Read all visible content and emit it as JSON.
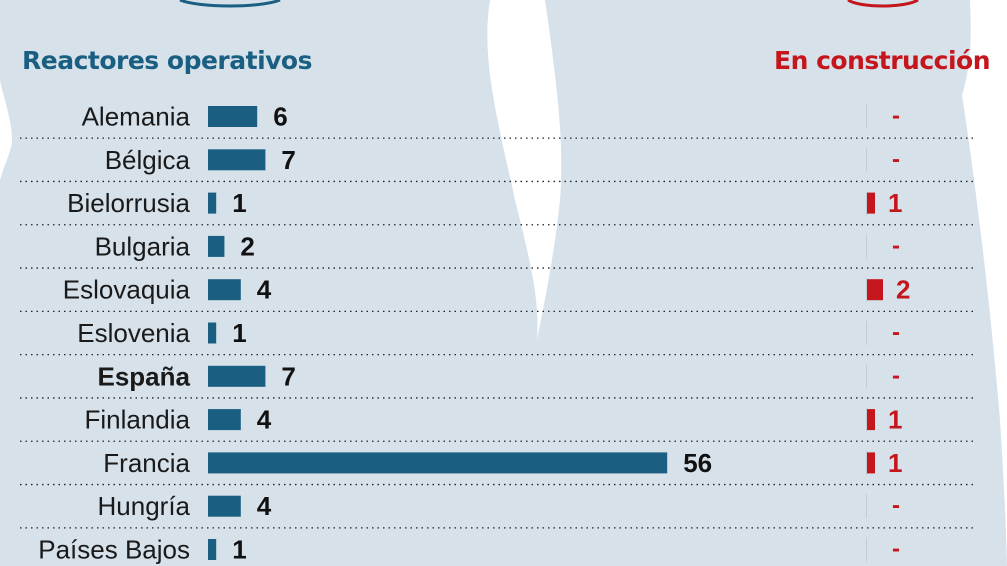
{
  "chart_data": {
    "type": "bar",
    "series": [
      {
        "name": "Reactores operativos",
        "values": [
          6,
          7,
          1,
          2,
          4,
          1,
          7,
          4,
          56,
          4,
          1
        ],
        "color": "#1a5f82"
      },
      {
        "name": "En construcción",
        "values": [
          null,
          null,
          1,
          null,
          2,
          null,
          null,
          1,
          1,
          null,
          null
        ],
        "color": "#c4161c"
      }
    ],
    "categories": [
      "Alemania",
      "Bélgica",
      "Bielorrusia",
      "Bulgaria",
      "Eslovaquia",
      "Eslovenia",
      "España",
      "Finlandia",
      "Francia",
      "Hungría",
      "Países Bajos"
    ],
    "highlight_category": "España",
    "missing_value_label": "-",
    "grid": true
  },
  "headers": {
    "operativos": "Reactores operativos",
    "construccion": "En construcción"
  }
}
